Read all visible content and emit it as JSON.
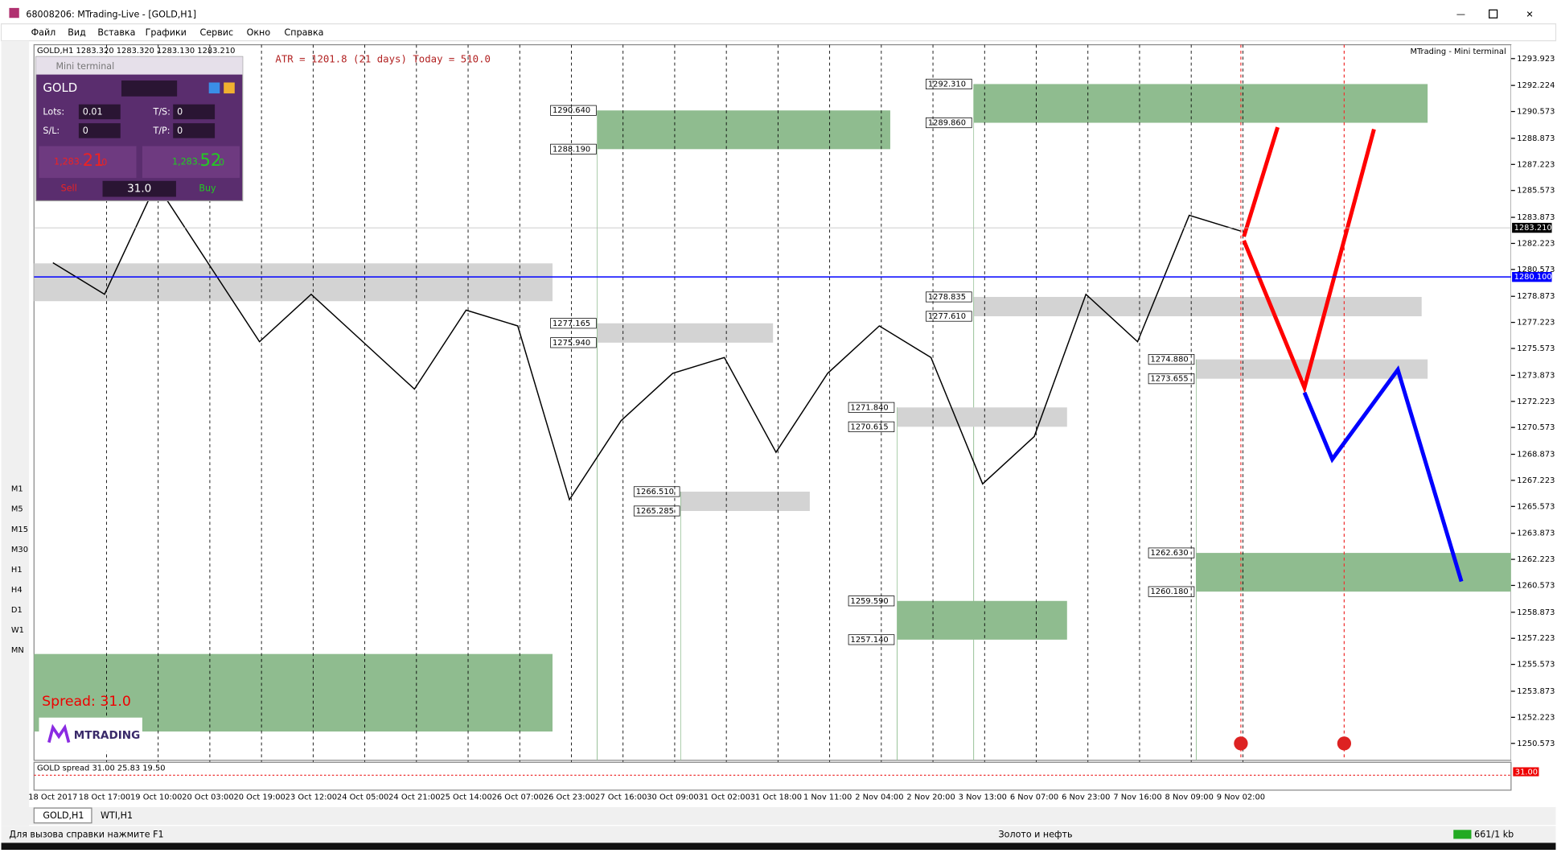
{
  "window": {
    "title": "68008206: MTrading-Live - [GOLD,H1]"
  },
  "menu": [
    "Файл",
    "Вид",
    "Вставка",
    "Графики",
    "Сервис",
    "Окно",
    "Справка"
  ],
  "periods": [
    "M1",
    "M5",
    "M15",
    "M30",
    "H1",
    "H4",
    "D1",
    "W1",
    "MN"
  ],
  "mini_terminal": {
    "title": "Mini terminal",
    "symbol": "GOLD",
    "lots_label": "Lots:",
    "lots": "0.01",
    "ts_label": "T/S:",
    "ts": "0",
    "sl_label": "S/L:",
    "sl": "0",
    "tp_label": "T/P:",
    "tp": "0",
    "sell_price": {
      "small": "1,283.",
      "big": "21",
      "sup": "0"
    },
    "buy_price": {
      "small": "1,283.",
      "big": "52",
      "sup": "0"
    },
    "sell": "Sell",
    "spread": "31.0",
    "buy": "Buy"
  },
  "chart": {
    "header": "GOLD,H1  1283.320 1283.320 1283.130 1283.210",
    "atr": "ATR = 1201.8  (21 days)  Today = 510.0",
    "corner": "MTrading - Mini terminal",
    "spread_text": "Spread:  31.0",
    "logo": "MTRADING",
    "indicator": "GOLD spread 31.00 25.83 19.50",
    "indicator_value": "31.00",
    "ylim": [
      1249.5,
      1294.8
    ],
    "yticks": [
      1293.923,
      1292.224,
      1290.573,
      1288.873,
      1287.223,
      1285.573,
      1283.873,
      1282.223,
      1280.573,
      1278.873,
      1277.223,
      1275.573,
      1273.873,
      1272.223,
      1270.573,
      1268.873,
      1267.223,
      1265.573,
      1263.873,
      1262.223,
      1260.573,
      1258.873,
      1257.223,
      1255.573,
      1253.873,
      1252.223,
      1250.573
    ],
    "bid": {
      "value": 1283.21,
      "label": "1283.210"
    },
    "level": {
      "value": 1280.1,
      "label": "1280.100"
    },
    "time_labels": [
      "18 Oct 2017",
      "18 Oct 17:00",
      "19 Oct 10:00",
      "20 Oct 03:00",
      "20 Oct 19:00",
      "23 Oct 12:00",
      "24 Oct 05:00",
      "24 Oct 21:00",
      "25 Oct 14:00",
      "26 Oct 07:00",
      "26 Oct 23:00",
      "27 Oct 16:00",
      "30 Oct 09:00",
      "31 Oct 02:00",
      "31 Oct 18:00",
      "1 Nov 11:00",
      "2 Nov 04:00",
      "2 Nov 20:00",
      "3 Nov 13:00",
      "6 Nov 07:00",
      "6 Nov 23:00",
      "7 Nov 16:00",
      "8 Nov 09:00",
      "9 Nov 02:00"
    ],
    "price_path": [
      1281,
      1279,
      1286,
      1281,
      1276,
      1279,
      1276,
      1273,
      1278,
      1277,
      1266,
      1271,
      1274,
      1275,
      1269,
      1274,
      1277,
      1275,
      1267,
      1270,
      1279,
      1276,
      1284,
      1283
    ],
    "zones": [
      {
        "top": {
          "value": 1290.64,
          "label": "1290.640"
        },
        "bottom": {
          "value": 1288.19,
          "label": "1288.190"
        },
        "color": "#8fbc8f"
      },
      {
        "top": {
          "value": 1292.31,
          "label": "1292.310"
        },
        "bottom": {
          "value": 1289.86,
          "label": "1289.860"
        },
        "color": "#8fbc8f"
      },
      {
        "top": {
          "value": 1277.165,
          "label": "1277.165"
        },
        "bottom": {
          "value": 1275.94,
          "label": "1275.940"
        },
        "color": "#d3d3d3"
      },
      {
        "top": {
          "value": 1266.51,
          "label": "1266.510"
        },
        "bottom": {
          "value": 1265.285,
          "label": "1265.285"
        },
        "color": "#d3d3d3"
      },
      {
        "top": {
          "value": 1278.835,
          "label": "1278.835"
        },
        "bottom": {
          "value": 1277.61,
          "label": "1277.610"
        },
        "color": "#d3d3d3"
      },
      {
        "top": {
          "value": 1271.84,
          "label": "1271.840"
        },
        "bottom": {
          "value": 1270.615,
          "label": "1270.615"
        },
        "color": "#d3d3d3"
      },
      {
        "top": {
          "value": 1274.88,
          "label": "1274.880"
        },
        "bottom": {
          "value": 1273.655,
          "label": "1273.655"
        },
        "color": "#d3d3d3"
      },
      {
        "top": {
          "value": 1262.63,
          "label": "1262.630"
        },
        "bottom": {
          "value": 1260.18,
          "label": "1260.180"
        },
        "color": "#8fbc8f"
      },
      {
        "top": {
          "value": 1259.59,
          "label": "1259.590"
        },
        "bottom": {
          "value": 1257.14,
          "label": "1257.140"
        },
        "color": "#8fbc8f"
      }
    ]
  },
  "tabs": [
    "GOLD,H1",
    "WTI,H1"
  ],
  "status": {
    "help": "Для вызова справки нажмите F1",
    "profile": "Золото и нефть",
    "traffic": "661/1 kb"
  }
}
